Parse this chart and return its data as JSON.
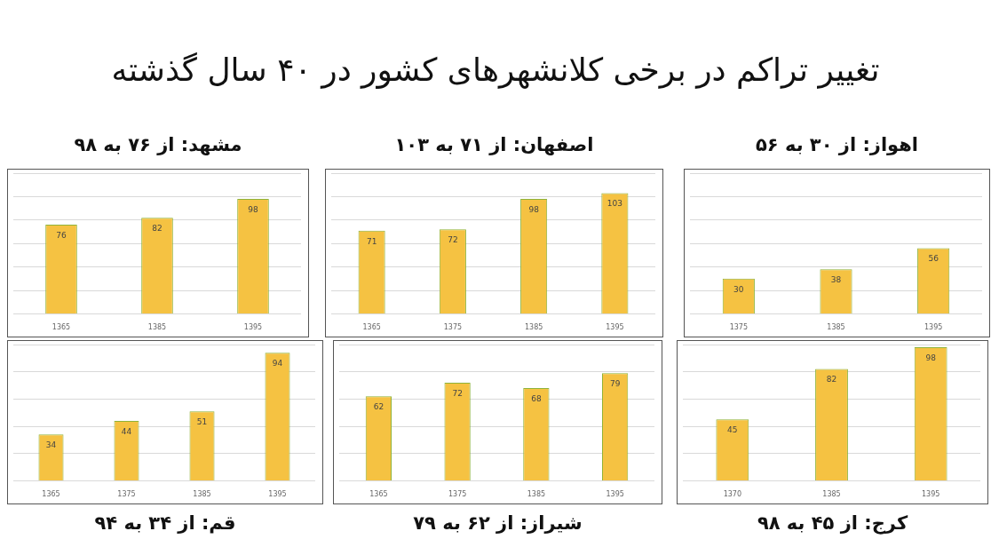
{
  "chart_data": [
    {
      "type": "other",
      "title": "تغییر تراکم در برخی کلانشهرهای کشور در ۴۰ سال گذشته"
    },
    {
      "type": "bar",
      "title": "مشهد: از ۷۶ به ۹۸",
      "categories": [
        "1365",
        "1385",
        "1395"
      ],
      "values": [
        76,
        82,
        98
      ],
      "color": "#f5c242",
      "ylim": [
        0,
        120
      ],
      "yticks": [
        {
          "value": 0,
          "label": null
        },
        {
          "value": 20,
          "label": null
        },
        {
          "value": 40,
          "label": null
        },
        {
          "value": 60,
          "label": null
        },
        {
          "value": 80,
          "label": null
        },
        {
          "value": 100,
          "label": null
        },
        {
          "value": 120,
          "label": null
        }
      ],
      "grid": "y",
      "tick_labels": "x",
      "data_labels": true
    },
    {
      "type": "bar",
      "title": "اصفهان: از ۷۱ به ۱۰۳",
      "categories": [
        "1365",
        "1375",
        "1385",
        "1395"
      ],
      "values": [
        71,
        72,
        98,
        103
      ],
      "color": "#f5c242",
      "ylim": [
        0,
        120
      ],
      "yticks": [
        {
          "value": 0,
          "label": null
        },
        {
          "value": 20,
          "label": null
        },
        {
          "value": 40,
          "label": null
        },
        {
          "value": 60,
          "label": null
        },
        {
          "value": 80,
          "label": null
        },
        {
          "value": 100,
          "label": null
        },
        {
          "value": 120,
          "label": null
        }
      ],
      "grid": "y",
      "tick_labels": "x",
      "data_labels": true
    },
    {
      "type": "bar",
      "title": "اهواز: از ۳۰ به ۵۶",
      "categories": [
        "1375",
        "1385",
        "1395"
      ],
      "values": [
        30,
        38,
        56
      ],
      "color": "#f5c242",
      "ylim": [
        0,
        120
      ],
      "yticks": [
        {
          "value": 0,
          "label": null
        },
        {
          "value": 20,
          "label": null
        },
        {
          "value": 40,
          "label": null
        },
        {
          "value": 60,
          "label": null
        },
        {
          "value": 80,
          "label": null
        },
        {
          "value": 100,
          "label": null
        },
        {
          "value": 120,
          "label": null
        }
      ],
      "grid": "y",
      "tick_labels": "x",
      "data_labels": true
    },
    {
      "type": "bar",
      "title": "قم: از ۳۴ به ۹۴",
      "categories": [
        "1365",
        "1375",
        "1385",
        "1395"
      ],
      "values": [
        34,
        44,
        51,
        94
      ],
      "color": "#f5c242",
      "ylim": [
        0,
        100
      ],
      "yticks": [
        {
          "value": 0,
          "label": null
        },
        {
          "value": 20,
          "label": null
        },
        {
          "value": 40,
          "label": null
        },
        {
          "value": 60,
          "label": null
        },
        {
          "value": 80,
          "label": null
        },
        {
          "value": 100,
          "label": null
        }
      ],
      "grid": "y",
      "tick_labels": "x",
      "data_labels": true
    },
    {
      "type": "bar",
      "title": "شیراز: از ۶۲ به ۷۹",
      "categories": [
        "1365",
        "1375",
        "1385",
        "1395"
      ],
      "values": [
        62,
        72,
        68,
        79
      ],
      "color": "#f5c242",
      "ylim": [
        0,
        100
      ],
      "yticks": [
        {
          "value": 0,
          "label": null
        },
        {
          "value": 20,
          "label": null
        },
        {
          "value": 40,
          "label": null
        },
        {
          "value": 60,
          "label": null
        },
        {
          "value": 80,
          "label": null
        },
        {
          "value": 100,
          "label": null
        }
      ],
      "grid": "y",
      "tick_labels": "x",
      "data_labels": true
    },
    {
      "type": "bar",
      "title": "کرج: از ۴۵ به ۹۸",
      "categories": [
        "1370",
        "1385",
        "1395"
      ],
      "values": [
        45,
        82,
        98
      ],
      "color": "#f5c242",
      "ylim": [
        0,
        100
      ],
      "yticks": [
        {
          "value": 0,
          "label": null
        },
        {
          "value": 20,
          "label": null
        },
        {
          "value": 40,
          "label": null
        },
        {
          "value": 60,
          "label": null
        },
        {
          "value": 80,
          "label": null
        },
        {
          "value": 100,
          "label": null
        }
      ],
      "grid": "y",
      "tick_labels": "x",
      "data_labels": true
    }
  ]
}
